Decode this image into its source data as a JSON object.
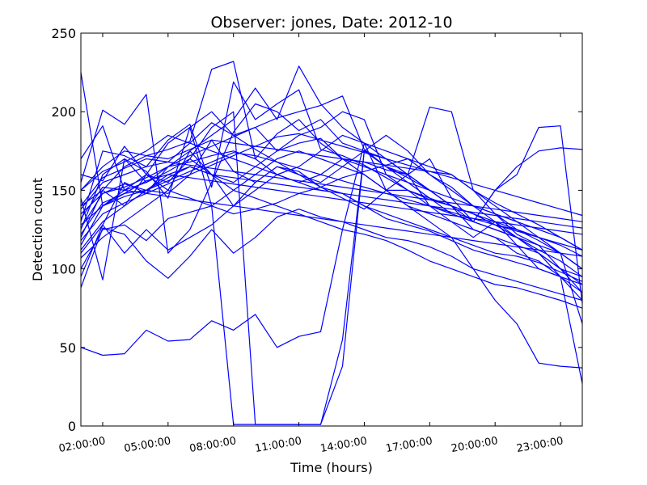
{
  "chart_data": {
    "type": "line",
    "title": "Observer: jones, Date: 2012-10",
    "xlabel": "Time (hours)",
    "ylabel": "Detection count",
    "xlim": [
      1,
      24
    ],
    "ylim": [
      0,
      250
    ],
    "xticks": [
      2,
      5,
      8,
      11,
      14,
      17,
      20,
      23
    ],
    "xtick_labels": [
      "02:00:00",
      "05:00:00",
      "08:00:00",
      "11:00:00",
      "14:00:00",
      "17:00:00",
      "20:00:00",
      "23:00:00"
    ],
    "yticks": [
      0,
      50,
      100,
      150,
      200,
      250
    ],
    "ytick_labels": [
      "0",
      "50",
      "100",
      "150",
      "200",
      "250"
    ],
    "grid": false,
    "line_color": "#0000ff",
    "x": [
      1,
      2,
      3,
      4,
      5,
      6,
      7,
      8,
      9,
      10,
      11,
      12,
      13,
      14,
      15,
      16,
      17,
      18,
      19,
      20,
      21,
      22,
      23,
      24
    ],
    "series": [
      {
        "values": [
          225,
          140,
          150,
          160,
          150,
          175,
          160,
          150,
          160,
          170,
          175,
          170,
          165,
          160,
          150,
          150,
          140,
          130,
          120,
          130,
          115,
          110,
          95,
          80
        ]
      },
      {
        "values": [
          170,
          191,
          150,
          155,
          162,
          170,
          160,
          140,
          155,
          165,
          160,
          155,
          165,
          175,
          165,
          155,
          145,
          135,
          130,
          125,
          120,
          110,
          100,
          85
        ]
      },
      {
        "values": [
          155,
          201,
          192,
          211,
          110,
          125,
          155,
          187,
          205,
          200,
          188,
          195,
          180,
          175,
          165,
          158,
          150,
          140,
          125,
          120,
          110,
          105,
          95,
          90
        ]
      },
      {
        "values": [
          140,
          150,
          165,
          172,
          176,
          181,
          227,
          232,
          170,
          186,
          195,
          180,
          170,
          160,
          150,
          140,
          135,
          130,
          125,
          120,
          115,
          100,
          95,
          85
        ]
      },
      {
        "values": [
          130,
          175,
          172,
          165,
          182,
          192,
          152,
          219,
          195,
          205,
          214,
          176,
          172,
          166,
          158,
          150,
          144,
          140,
          135,
          128,
          125,
          118,
          110,
          100
        ]
      },
      {
        "values": [
          125,
          160,
          170,
          155,
          165,
          175,
          185,
          195,
          215,
          195,
          229,
          205,
          190,
          180,
          170,
          160,
          150,
          140,
          135,
          128,
          120,
          112,
          105,
          95
        ]
      },
      {
        "values": [
          120,
          150,
          140,
          160,
          155,
          170,
          190,
          200,
          1,
          1,
          1,
          1,
          38,
          175,
          170,
          160,
          150,
          140,
          130,
          125,
          120,
          110,
          100,
          90
        ]
      },
      {
        "values": [
          115,
          140,
          148,
          150,
          148,
          160,
          182,
          162,
          155,
          165,
          162,
          152,
          148,
          140,
          135,
          130,
          125,
          120,
          115,
          110,
          108,
          104,
          98,
          92
        ]
      },
      {
        "values": [
          110,
          128,
          155,
          148,
          165,
          168,
          172,
          175,
          170,
          160,
          155,
          160,
          170,
          165,
          160,
          155,
          150,
          145,
          140,
          135,
          130,
          125,
          120,
          112
        ]
      },
      {
        "values": [
          107,
          120,
          130,
          140,
          150,
          145,
          140,
          135,
          138,
          142,
          148,
          152,
          158,
          162,
          166,
          170,
          160,
          150,
          140,
          130,
          125,
          120,
          110,
          100
        ]
      },
      {
        "values": [
          100,
          125,
          128,
          118,
          132,
          136,
          140,
          150,
          145,
          140,
          135,
          130,
          125,
          122,
          118,
          112,
          105,
          100,
          95,
          90,
          88,
          84,
          80,
          75
        ]
      },
      {
        "values": [
          95,
          128,
          110,
          125,
          112,
          120,
          128,
          140,
          150,
          160,
          165,
          175,
          185,
          180,
          175,
          170,
          165,
          160,
          150,
          135,
          122,
          115,
          110,
          100
        ]
      },
      {
        "values": [
          88,
          126,
          122,
          105,
          94,
          108,
          125,
          110,
          120,
          133,
          138,
          133,
          130,
          125,
          120,
          118,
          114,
          108,
          100,
          96,
          92,
          88,
          84,
          80
        ]
      },
      {
        "values": [
          50,
          45,
          46,
          61,
          54,
          55,
          67,
          61,
          71,
          50,
          57,
          60,
          125,
          180,
          150,
          140,
          130,
          120,
          100,
          80,
          65,
          40,
          38,
          37
        ]
      },
      {
        "values": [
          160,
          156,
          178,
          160,
          180,
          190,
          200,
          185,
          190,
          175,
          180,
          183,
          170,
          168,
          163,
          160,
          170,
          145,
          130,
          150,
          160,
          190,
          191,
          78
        ]
      },
      {
        "values": [
          145,
          93,
          170,
          162,
          145,
          190,
          140,
          1,
          1,
          1,
          1,
          1,
          55,
          175,
          185,
          175,
          160,
          152,
          140,
          135,
          125,
          120,
          115,
          108
        ]
      },
      {
        "values": [
          150,
          162,
          168,
          175,
          185,
          180,
          175,
          170,
          165,
          160,
          155,
          150,
          148,
          146,
          144,
          142,
          140,
          138,
          136,
          134,
          132,
          130,
          128,
          126
        ]
      },
      {
        "values": [
          135,
          148,
          152,
          158,
          165,
          172,
          178,
          184,
          190,
          196,
          200,
          204,
          210,
          176,
          165,
          160,
          203,
          200,
          150,
          142,
          135,
          128,
          120,
          112
        ]
      },
      {
        "values": [
          128,
          140,
          146,
          150,
          156,
          162,
          168,
          174,
          172,
          168,
          164,
          160,
          156,
          152,
          148,
          144,
          140,
          136,
          132,
          128,
          124,
          120,
          116,
          112
        ]
      },
      {
        "values": [
          118,
          135,
          142,
          148,
          154,
          160,
          166,
          172,
          178,
          184,
          186,
          182,
          178,
          174,
          170,
          166,
          162,
          158,
          154,
          150,
          146,
          142,
          138,
          134
        ]
      },
      {
        "values": [
          112,
          130,
          140,
          150,
          158,
          165,
          160,
          155,
          165,
          175,
          185,
          190,
          200,
          195,
          160,
          150,
          145,
          140,
          135,
          130,
          120,
          115,
          100,
          95
        ]
      },
      {
        "values": [
          140,
          158,
          164,
          170,
          168,
          166,
          164,
          162,
          160,
          158,
          156,
          154,
          152,
          150,
          148,
          146,
          144,
          142,
          140,
          138,
          136,
          134,
          132,
          130
        ]
      },
      {
        "values": [
          132,
          152,
          150,
          148,
          146,
          144,
          142,
          140,
          138,
          136,
          134,
          132,
          130,
          128,
          126,
          124,
          122,
          120,
          118,
          116,
          114,
          112,
          110,
          108
        ]
      },
      {
        "values": [
          122,
          142,
          148,
          156,
          160,
          158,
          156,
          154,
          152,
          150,
          148,
          146,
          144,
          142,
          140,
          138,
          136,
          134,
          132,
          130,
          128,
          126,
          124,
          122
        ]
      },
      {
        "values": [
          150,
          165,
          175,
          172,
          170,
          176,
          182,
          180,
          178,
          176,
          174,
          172,
          170,
          168,
          166,
          164,
          162,
          160,
          150,
          140,
          130,
          120,
          110,
          65
        ]
      },
      {
        "values": [
          138,
          155,
          160,
          165,
          168,
          180,
          193,
          185,
          176,
          168,
          160,
          152,
          145,
          138,
          150,
          160,
          140,
          135,
          130,
          150,
          165,
          175,
          177,
          176
        ]
      },
      {
        "values": [
          126,
          148,
          154,
          150,
          160,
          165,
          160,
          158,
          156,
          154,
          152,
          150,
          148,
          140,
          132,
          128,
          124,
          118,
          112,
          108,
          104,
          100,
          95,
          27
        ]
      }
    ]
  }
}
